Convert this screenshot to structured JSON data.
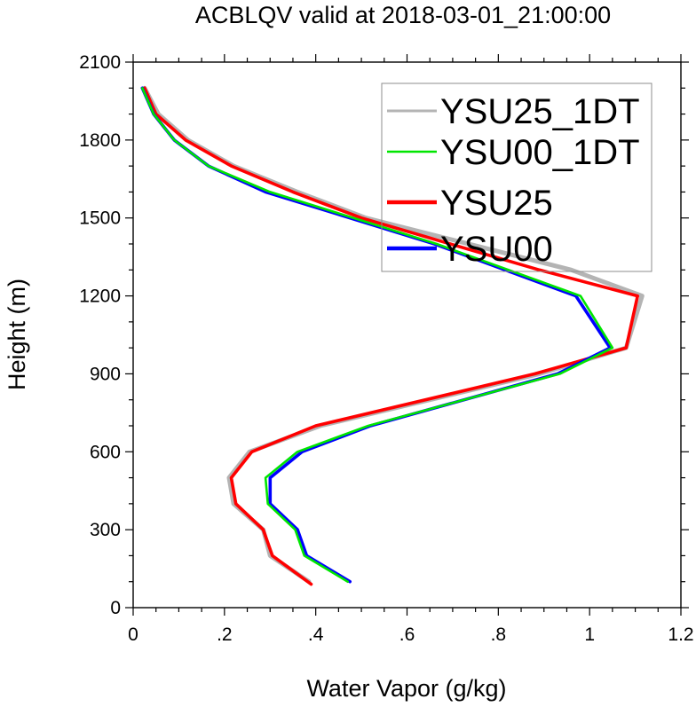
{
  "chart_data": {
    "type": "line",
    "title": "ACBLQV valid at 2018-03-01_21:00:00",
    "xlabel": "Water Vapor (g/kg)",
    "ylabel": "Height (m)",
    "xlim": [
      0,
      1.2
    ],
    "ylim": [
      0,
      2100
    ],
    "x_ticks": [
      0,
      0.2,
      0.4,
      0.6,
      0.8,
      1.0,
      1.2
    ],
    "x_tick_labels": [
      "0",
      ".2",
      ".4",
      ".6",
      ".8",
      "1",
      "1.2"
    ],
    "y_ticks": [
      0,
      300,
      600,
      900,
      1200,
      1500,
      1800,
      2100
    ],
    "y_tick_labels": [
      "0",
      "300",
      "600",
      "900",
      "1200",
      "1500",
      "1800",
      "2100"
    ],
    "legend_position": "top-right",
    "grid": false,
    "series": [
      {
        "name": "YSU25_1DT",
        "color": "#b4b4b4",
        "points": [
          [
            0.385,
            100
          ],
          [
            0.3,
            200
          ],
          [
            0.285,
            300
          ],
          [
            0.22,
            400
          ],
          [
            0.21,
            500
          ],
          [
            0.255,
            600
          ],
          [
            0.41,
            700
          ],
          [
            0.89,
            900
          ],
          [
            1.08,
            1000
          ],
          [
            1.115,
            1200
          ],
          [
            0.96,
            1300
          ],
          [
            0.51,
            1500
          ],
          [
            0.36,
            1600
          ],
          [
            0.22,
            1700
          ],
          [
            0.12,
            1800
          ],
          [
            0.055,
            1900
          ],
          [
            0.025,
            2000
          ]
        ]
      },
      {
        "name": "YSU00_1DT",
        "color": "#00e600",
        "points": [
          [
            0.47,
            100
          ],
          [
            0.375,
            200
          ],
          [
            0.355,
            300
          ],
          [
            0.295,
            400
          ],
          [
            0.29,
            500
          ],
          [
            0.36,
            600
          ],
          [
            0.515,
            700
          ],
          [
            0.935,
            900
          ],
          [
            1.05,
            1000
          ],
          [
            0.98,
            1200
          ],
          [
            0.665,
            1400
          ],
          [
            0.3,
            1600
          ],
          [
            0.165,
            1700
          ],
          [
            0.09,
            1800
          ],
          [
            0.045,
            1900
          ],
          [
            0.02,
            2000
          ]
        ]
      },
      {
        "name": "YSU25",
        "color": "#ff0000",
        "points": [
          [
            0.39,
            90
          ],
          [
            0.305,
            200
          ],
          [
            0.285,
            300
          ],
          [
            0.225,
            400
          ],
          [
            0.215,
            500
          ],
          [
            0.26,
            600
          ],
          [
            0.4,
            700
          ],
          [
            0.88,
            900
          ],
          [
            1.08,
            1000
          ],
          [
            1.105,
            1200
          ],
          [
            0.89,
            1300
          ],
          [
            0.5,
            1500
          ],
          [
            0.35,
            1600
          ],
          [
            0.215,
            1700
          ],
          [
            0.115,
            1800
          ],
          [
            0.05,
            1900
          ],
          [
            0.025,
            2000
          ]
        ]
      },
      {
        "name": "YSU00",
        "color": "#0000ff",
        "points": [
          [
            0.475,
            100
          ],
          [
            0.38,
            200
          ],
          [
            0.36,
            300
          ],
          [
            0.3,
            400
          ],
          [
            0.3,
            500
          ],
          [
            0.37,
            600
          ],
          [
            0.52,
            700
          ],
          [
            0.93,
            900
          ],
          [
            1.045,
            1000
          ],
          [
            0.97,
            1200
          ],
          [
            0.66,
            1400
          ],
          [
            0.29,
            1600
          ],
          [
            0.165,
            1700
          ],
          [
            0.09,
            1800
          ],
          [
            0.045,
            1900
          ],
          [
            0.02,
            2000
          ]
        ]
      }
    ]
  }
}
